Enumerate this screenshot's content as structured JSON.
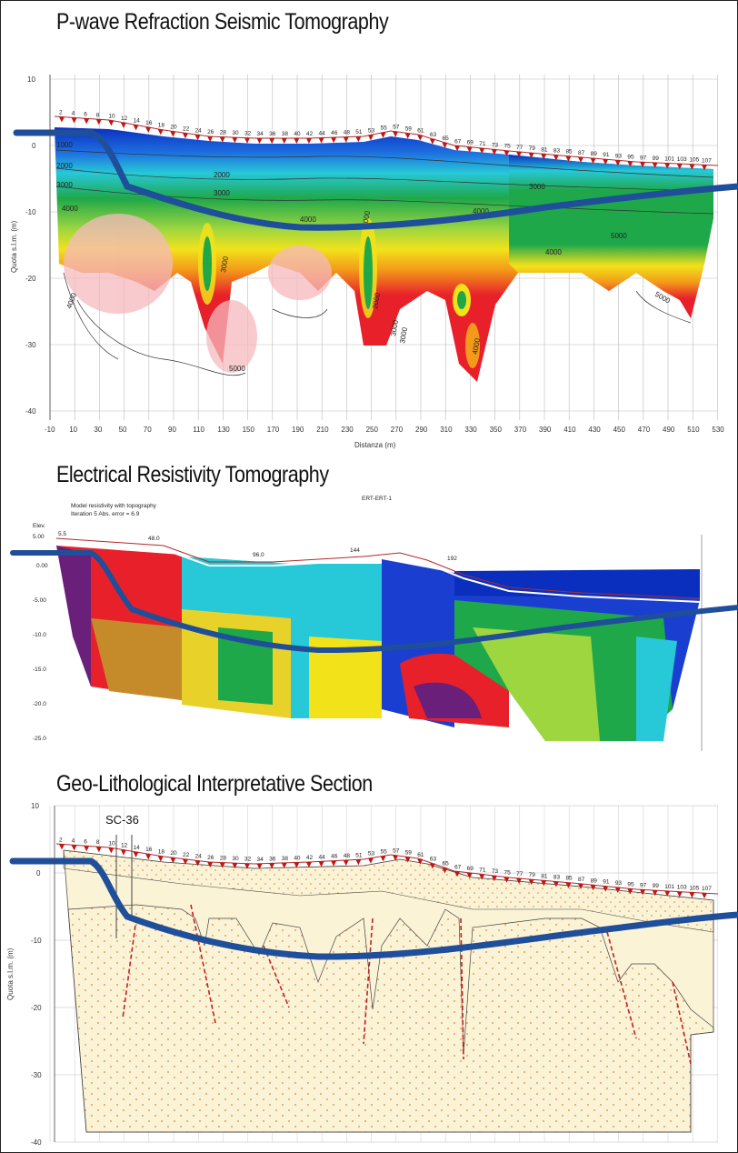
{
  "panels": {
    "seismic": {
      "title": "P-wave Refraction Seismic Tomography",
      "y_axis_label": "Quota s.l.m. (m)",
      "x_axis_label": "Distanza (m)",
      "y_ticks": [
        "10",
        "0",
        "-10",
        "-20",
        "-30",
        "-40"
      ],
      "x_ticks": [
        "-10",
        "10",
        "30",
        "50",
        "70",
        "90",
        "110",
        "130",
        "150",
        "170",
        "190",
        "210",
        "230",
        "250",
        "270",
        "290",
        "310",
        "330",
        "350",
        "370",
        "390",
        "410",
        "430",
        "450",
        "470",
        "490",
        "510",
        "530"
      ],
      "geophones": [
        "2",
        "4",
        "6",
        "8",
        "10",
        "12",
        "14",
        "16",
        "18",
        "20",
        "22",
        "24",
        "26",
        "28",
        "30",
        "32",
        "34",
        "36",
        "38",
        "40",
        "42",
        "44",
        "46",
        "48",
        "51",
        "53",
        "55",
        "57",
        "59",
        "61",
        "63",
        "65",
        "67",
        "69",
        "71",
        "73",
        "75",
        "77",
        "79",
        "81",
        "83",
        "85",
        "87",
        "89",
        "91",
        "93",
        "95",
        "97",
        "99",
        "101",
        "103",
        "105",
        "107"
      ],
      "contours": [
        "1000",
        "2000",
        "3000",
        "2000",
        "3000",
        "4000",
        "2000",
        "3000",
        "4000",
        "2000",
        "3000",
        "4000",
        "5000",
        "4000",
        "5000",
        "3000",
        "4000",
        "3000",
        "5000",
        "4000"
      ],
      "colors": {
        "high": "#e8202a",
        "mid": "#f2e21a",
        "green": "#1fa84a",
        "cyan": "#27c8d8",
        "low": "#0a2fbf"
      }
    },
    "resistivity": {
      "title": "Electrical Resistivity Tomography",
      "header_line1": "Model resistivity with topography",
      "header_line2": "Iteration 5 Abs. error = 6.9",
      "header_right": "ERT-ERT-1",
      "y_ticks": [
        "Elev.",
        "5.00",
        "0.00",
        "-5.00",
        "-10.0",
        "-15.0",
        "-20.0",
        "-25.0"
      ],
      "surface_labels": [
        "5.5",
        "48.0",
        "96.0",
        "144",
        "192"
      ]
    },
    "lithology": {
      "title": "Geo-Lithological Interpretative Section",
      "borehole_label": "SC-36",
      "y_axis_label": "Quota s.l.m. (m)",
      "y_ticks": [
        "10",
        "0",
        "-10",
        "-20",
        "-30",
        "-40"
      ],
      "geophones": [
        "2",
        "4",
        "6",
        "8",
        "10",
        "12",
        "14",
        "16",
        "18",
        "20",
        "22",
        "24",
        "26",
        "28",
        "30",
        "32",
        "34",
        "36",
        "38",
        "40",
        "42",
        "44",
        "46",
        "48",
        "51",
        "53",
        "55",
        "57",
        "59",
        "61",
        "63",
        "65",
        "67",
        "69",
        "71",
        "73",
        "75",
        "77",
        "79",
        "81",
        "83",
        "85",
        "87",
        "89",
        "91",
        "93",
        "95",
        "97",
        "99",
        "101",
        "103",
        "105",
        "107"
      ],
      "colors": {
        "fill": "#fbf3d6",
        "dots": "#d9823a",
        "fault": "#c62020"
      }
    }
  },
  "overlay": {
    "interface_color": "#1f4e9a",
    "topography_color": "#b02a2a",
    "geophone_color": "#c41414"
  }
}
